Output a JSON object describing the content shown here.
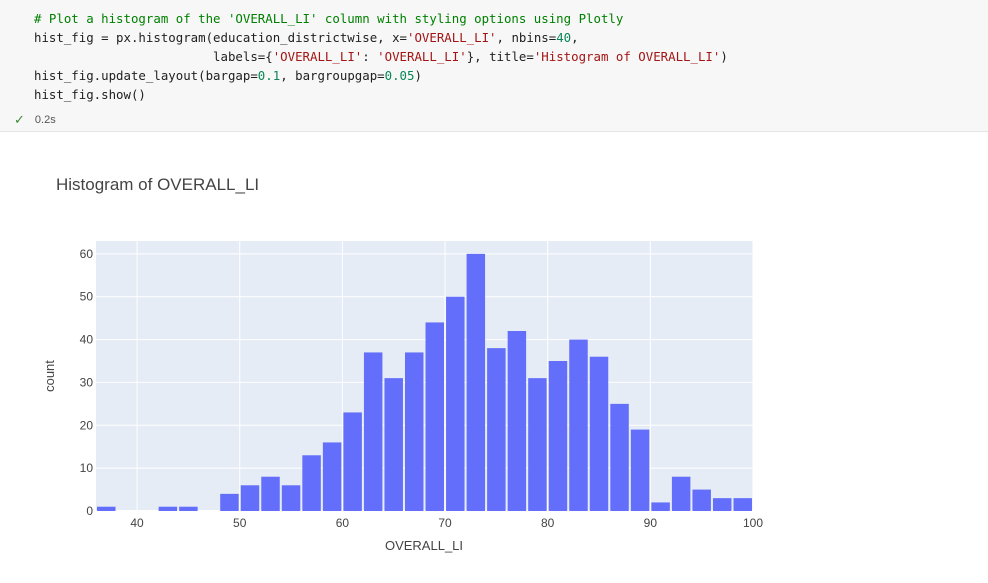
{
  "cell": {
    "code_lines": [
      [
        {
          "t": "# Plot a histogram of the 'OVERALL_LI' column with styling options using Plotly",
          "c": "comment"
        }
      ],
      [
        {
          "t": "hist_fig = px.histogram(education_districtwise, x=",
          "c": "var"
        },
        {
          "t": "'OVERALL_LI'",
          "c": "string"
        },
        {
          "t": ", nbins=",
          "c": "var"
        },
        {
          "t": "40",
          "c": "number"
        },
        {
          "t": ",",
          "c": "var"
        }
      ],
      [
        {
          "t": "                        labels={",
          "c": "var"
        },
        {
          "t": "'OVERALL_LI'",
          "c": "string"
        },
        {
          "t": ": ",
          "c": "var"
        },
        {
          "t": "'OVERALL_LI'",
          "c": "string"
        },
        {
          "t": "}, title=",
          "c": "var"
        },
        {
          "t": "'Histogram of OVERALL_LI'",
          "c": "string"
        },
        {
          "t": ")",
          "c": "var"
        }
      ],
      [
        {
          "t": "hist_fig.update_layout(bargap=",
          "c": "var"
        },
        {
          "t": "0.1",
          "c": "number"
        },
        {
          "t": ", bargroupgap=",
          "c": "var"
        },
        {
          "t": "0.05",
          "c": "number"
        },
        {
          "t": ")",
          "c": "var"
        }
      ],
      [
        {
          "t": "hist_fig.show()",
          "c": "var"
        }
      ]
    ],
    "status_time": "0.2s",
    "check_icon": "check-icon"
  },
  "colors": {
    "bar": "#636efa",
    "plot_bg": "#e5ecf6",
    "grid": "#ffffff",
    "text": "#444444"
  },
  "chart_data": {
    "type": "bar",
    "title": "Histogram of OVERALL_LI",
    "xlabel": "OVERALL_LI",
    "ylabel": "count",
    "xlim": [
      36,
      100
    ],
    "ylim": [
      0,
      63
    ],
    "bin_width": 2,
    "x_ticks": [
      40,
      50,
      60,
      70,
      80,
      90,
      100
    ],
    "y_ticks": [
      0,
      10,
      20,
      30,
      40,
      50,
      60
    ],
    "grid": true,
    "bins": [
      {
        "x0": 36,
        "value": 1
      },
      {
        "x0": 38,
        "value": 0
      },
      {
        "x0": 40,
        "value": 0
      },
      {
        "x0": 42,
        "value": 1
      },
      {
        "x0": 44,
        "value": 1
      },
      {
        "x0": 46,
        "value": 0
      },
      {
        "x0": 48,
        "value": 4
      },
      {
        "x0": 50,
        "value": 6
      },
      {
        "x0": 52,
        "value": 8
      },
      {
        "x0": 54,
        "value": 6
      },
      {
        "x0": 56,
        "value": 13
      },
      {
        "x0": 58,
        "value": 16
      },
      {
        "x0": 60,
        "value": 23
      },
      {
        "x0": 62,
        "value": 37
      },
      {
        "x0": 64,
        "value": 31
      },
      {
        "x0": 66,
        "value": 37
      },
      {
        "x0": 68,
        "value": 44
      },
      {
        "x0": 70,
        "value": 50
      },
      {
        "x0": 72,
        "value": 60
      },
      {
        "x0": 74,
        "value": 38
      },
      {
        "x0": 76,
        "value": 42
      },
      {
        "x0": 78,
        "value": 31
      },
      {
        "x0": 80,
        "value": 35
      },
      {
        "x0": 82,
        "value": 40
      },
      {
        "x0": 84,
        "value": 36
      },
      {
        "x0": 86,
        "value": 25
      },
      {
        "x0": 88,
        "value": 19
      },
      {
        "x0": 90,
        "value": 2
      },
      {
        "x0": 92,
        "value": 8
      },
      {
        "x0": 94,
        "value": 5
      },
      {
        "x0": 96,
        "value": 3
      },
      {
        "x0": 98,
        "value": 3
      }
    ]
  }
}
